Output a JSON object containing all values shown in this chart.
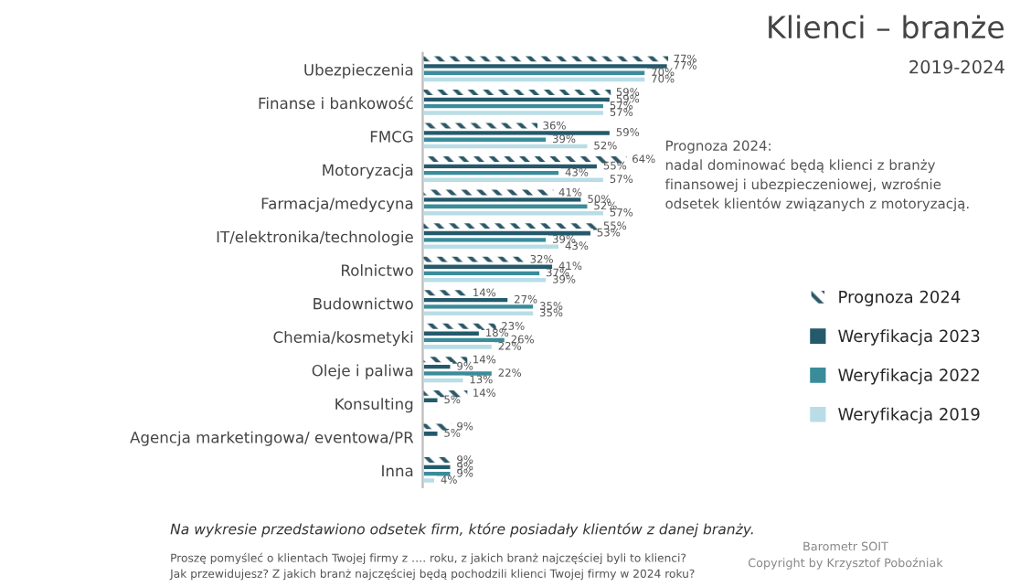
{
  "chart_data": {
    "type": "bar",
    "orientation": "horizontal",
    "title": "Klienci – branże",
    "subtitle": "2019-2024",
    "categories": [
      "Ubezpieczenia",
      "Finanse i bankowość",
      "FMCG",
      "Motoryzacja",
      "Farmacja/medycyna",
      "IT/elektronika/technologie",
      "Rolnictwo",
      "Budownictwo",
      "Chemia/kosmetyki",
      "Oleje i paliwa",
      "Konsulting",
      "Agencja marketingowa/ eventowa/PR",
      "Inna"
    ],
    "series": [
      {
        "name": "Prognoza 2024",
        "color": "#2b5766",
        "values": [
          77,
          59,
          36,
          64,
          41,
          55,
          32,
          14,
          23,
          14,
          14,
          9,
          9
        ],
        "value_labels": [
          "77%",
          "59%",
          "36%",
          "64%",
          "41%",
          "55%",
          "32%",
          "14%",
          "23%",
          "14%",
          "14%",
          "9%",
          "9%"
        ]
      },
      {
        "name": "Weryfikacja 2023",
        "color": "#245a6b",
        "values": [
          77,
          59,
          59,
          55,
          50,
          53,
          41,
          27,
          18,
          9,
          5,
          5,
          9
        ],
        "value_labels": [
          "77%",
          "59%",
          "59%",
          "55%",
          "50%",
          "53%",
          "41%",
          "27%",
          "18%",
          "9%",
          "5%",
          "5%",
          "9%"
        ]
      },
      {
        "name": "Weryfikacja 2022",
        "color": "#3a8c9b",
        "values": [
          70,
          57,
          39,
          43,
          52,
          39,
          37,
          35,
          26,
          22,
          null,
          null,
          9
        ],
        "value_labels": [
          "70%",
          "57%",
          "39%",
          "43%",
          "52%",
          "39%",
          "37%",
          "35%",
          "26%",
          "22%",
          null,
          null,
          "9%"
        ]
      },
      {
        "name": "Weryfikacja 2019",
        "color": "#b9dde6",
        "values": [
          70,
          57,
          52,
          57,
          57,
          43,
          39,
          35,
          22,
          13,
          null,
          null,
          4
        ],
        "value_labels": [
          "70%",
          "57%",
          "52%",
          "57%",
          "57%",
          "43%",
          "39%",
          "35%",
          "22%",
          "13%",
          null,
          null,
          "4%"
        ]
      }
    ],
    "legend": "right",
    "annotations": [
      "Prognoza 2024:\nnadal dominować będą klienci z branży\nfinansowej i ubezpieczeniowej, wzrośnie\nodsetek klientów związanych z motoryzacją.",
      "Na wykresie przedstawiono odsetek firm, które posiadały klientów z danej branży.",
      "Proszę pomyśleć o klientach Twojej firmy z …. roku, z jakich branż najczęściej byli to klienci?\nJak przewidujesz? Z jakich branż najczęściej będą pochodzili klienci Twojej firmy w 2024 roku?",
      "Barometr SOIT\nCopyright by Krzysztof Poboźniak"
    ]
  }
}
